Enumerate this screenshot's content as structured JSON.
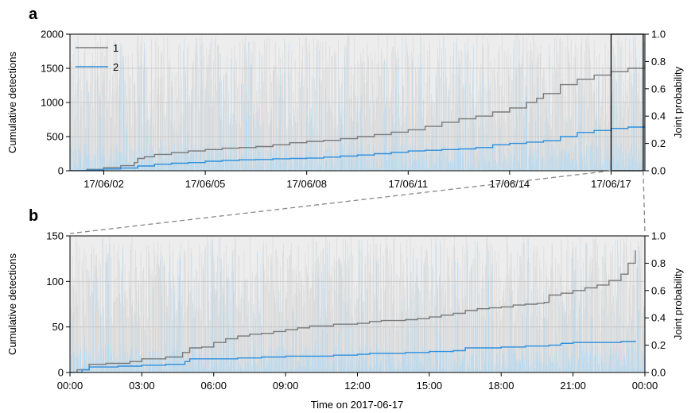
{
  "chart_data": [
    {
      "panel_label": "a",
      "type": "line",
      "ylabel": "Cumulative detections",
      "y2label": "Joint probability",
      "ylim": [
        0,
        2000
      ],
      "y2lim": [
        0,
        1.0
      ],
      "xlim_days": [
        0,
        17
      ],
      "x_tick_labels": [
        "17/06/02",
        "17/06/05",
        "17/06/08",
        "17/06/11",
        "17/06/14",
        "17/06/17"
      ],
      "x_tick_positions_days": [
        1.0,
        4.0,
        7.0,
        10.0,
        13.0,
        16.0
      ],
      "y_ticks": [
        0,
        500,
        1000,
        1500,
        2000
      ],
      "y2_ticks": [
        "0.0",
        "0.2",
        "0.4",
        "0.6",
        "0.8",
        "1.0"
      ],
      "grid": true,
      "legend": {
        "placement": "top-left",
        "entries": [
          "1",
          "2"
        ]
      },
      "series": [
        {
          "name": "1",
          "color": "#7a7a7a",
          "x": [
            0,
            0.5,
            1.0,
            1.5,
            1.9,
            2.0,
            2.2,
            2.5,
            3.0,
            3.5,
            4.0,
            4.5,
            5.0,
            5.5,
            6.0,
            6.5,
            7.0,
            7.5,
            8.0,
            8.5,
            9.0,
            9.5,
            10.0,
            10.5,
            11.0,
            11.5,
            12.0,
            12.5,
            13.0,
            13.5,
            13.8,
            14.0,
            14.5,
            15.0,
            15.5,
            16.0,
            16.5,
            17.0
          ],
          "y": [
            0,
            20,
            45,
            75,
            120,
            180,
            205,
            240,
            265,
            290,
            310,
            330,
            340,
            355,
            380,
            410,
            430,
            445,
            470,
            500,
            530,
            565,
            600,
            650,
            710,
            760,
            800,
            860,
            920,
            1000,
            1060,
            1130,
            1260,
            1340,
            1400,
            1450,
            1500,
            1550
          ]
        },
        {
          "name": "2",
          "color": "#2e8fdc",
          "x": [
            0,
            0.5,
            1.0,
            1.5,
            2.0,
            2.5,
            3.0,
            3.5,
            4.0,
            4.5,
            5.0,
            5.5,
            6.0,
            6.5,
            7.0,
            7.5,
            8.0,
            8.5,
            9.0,
            9.5,
            10.0,
            10.5,
            11.0,
            11.5,
            12.0,
            12.5,
            13.0,
            13.5,
            14.0,
            14.5,
            15.0,
            15.5,
            16.0,
            16.5,
            17.0
          ],
          "y": [
            0,
            10,
            25,
            40,
            70,
            95,
            110,
            120,
            140,
            150,
            160,
            165,
            175,
            180,
            185,
            200,
            215,
            230,
            250,
            270,
            290,
            300,
            310,
            320,
            340,
            380,
            400,
            420,
            440,
            500,
            560,
            590,
            620,
            640,
            660
          ]
        }
      ],
      "probability_traces_count": 2,
      "probability_trace_colors": [
        "#cfcfcf",
        "#a9d8f7"
      ],
      "zoom_box_days": [
        16.0,
        16.95
      ]
    },
    {
      "panel_label": "b",
      "type": "line",
      "xlabel": "Time on 2017-06-17",
      "ylabel": "Cumulative detections",
      "y2label": "Joint probability",
      "ylim": [
        0,
        150
      ],
      "y2lim": [
        0,
        1.0
      ],
      "xlim_hours": [
        0,
        24
      ],
      "x_tick_labels": [
        "00:00",
        "03:00",
        "06:00",
        "09:00",
        "12:00",
        "15:00",
        "18:00",
        "21:00",
        "00:00"
      ],
      "y_ticks": [
        0,
        50,
        100,
        150
      ],
      "y2_ticks": [
        "0.0",
        "0.2",
        "0.4",
        "0.6",
        "0.8",
        "1.0"
      ],
      "grid": true,
      "series": [
        {
          "name": "1",
          "color": "#7a7a7a",
          "x": [
            0,
            0.3,
            0.8,
            1.5,
            2.5,
            3.0,
            4.0,
            4.7,
            5.0,
            5.5,
            6.0,
            6.5,
            7.0,
            7.5,
            8.0,
            8.5,
            9.0,
            9.5,
            10.0,
            11.0,
            12.0,
            12.5,
            13.0,
            14.0,
            14.5,
            15.0,
            15.5,
            16.0,
            16.5,
            17.0,
            17.5,
            18.0,
            18.5,
            19.0,
            19.5,
            19.8,
            20.0,
            20.5,
            21.0,
            21.5,
            22.0,
            22.5,
            23.0,
            23.3,
            23.6
          ],
          "y": [
            0,
            3,
            9,
            10,
            12,
            15,
            17,
            22,
            27,
            28,
            33,
            37,
            40,
            42,
            43,
            45,
            47,
            49,
            51,
            53,
            54,
            56,
            57,
            58,
            59,
            61,
            63,
            65,
            68,
            70,
            71,
            72,
            74,
            75,
            76,
            77,
            85,
            87,
            90,
            93,
            96,
            101,
            108,
            120,
            134
          ]
        },
        {
          "name": "2",
          "color": "#2e8fdc",
          "x": [
            0,
            0.5,
            0.8,
            2.0,
            3.0,
            4.0,
            4.8,
            5.0,
            6.0,
            7.0,
            8.0,
            9.0,
            10.0,
            11.0,
            12.0,
            12.5,
            13.0,
            14.0,
            15.0,
            16.0,
            16.5,
            17.0,
            18.0,
            19.0,
            20.0,
            20.5,
            21.0,
            22.0,
            23.0,
            23.6
          ],
          "y": [
            0,
            3,
            6,
            7,
            8,
            9,
            12,
            15,
            15,
            16,
            17,
            18,
            18,
            19,
            20,
            21,
            21,
            22,
            23,
            24,
            27,
            27,
            28,
            29,
            30,
            32,
            33,
            33,
            34,
            35
          ]
        }
      ],
      "probability_traces_count": 2,
      "probability_trace_colors": [
        "#cfcfcf",
        "#a9d8f7"
      ]
    }
  ]
}
